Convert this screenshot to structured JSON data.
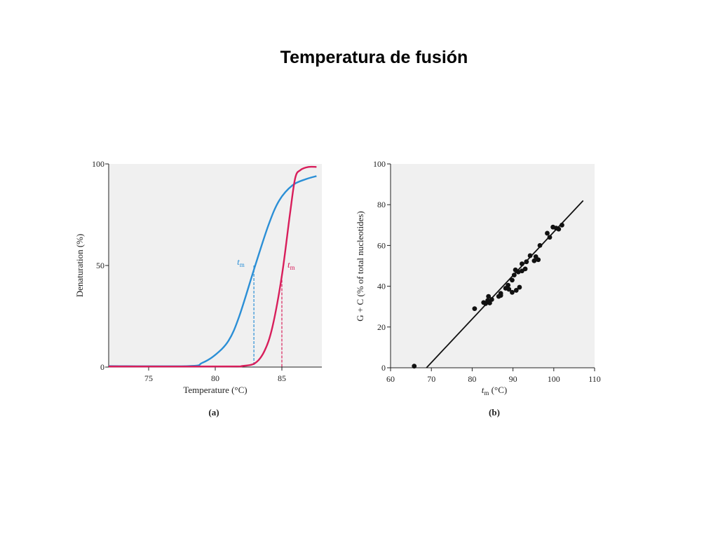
{
  "slide": {
    "title": "Temperatura de fusión"
  },
  "chart_data": [
    {
      "type": "line",
      "caption": "(a)",
      "xlabel": "Temperature (°C)",
      "ylabel": "Denaturation (%)",
      "xlim": [
        72,
        88
      ],
      "ylim": [
        0,
        100
      ],
      "xticks": [
        75,
        80,
        85
      ],
      "yticks": [
        0,
        50,
        100
      ],
      "grid": false,
      "series": [
        {
          "color": "#2b8fd6",
          "x": [
            72,
            78,
            79,
            80,
            81,
            81.8,
            83,
            84,
            84.8,
            85.8,
            86.8,
            87.6
          ],
          "y": [
            0.5,
            0.5,
            2,
            6,
            13,
            25,
            50,
            70,
            82,
            89.5,
            92.5,
            94
          ]
        },
        {
          "color": "#d81e5b",
          "x": [
            72,
            81,
            82,
            83,
            83.7,
            84.3,
            85,
            85.6,
            86,
            86.4,
            87,
            87.6
          ],
          "y": [
            0.3,
            0.3,
            0.5,
            2,
            8,
            20,
            45,
            75,
            93,
            97,
            98.5,
            98.5
          ]
        }
      ],
      "tm_markers": [
        {
          "label": "t",
          "sub": "m",
          "color": "#2b8fd6",
          "x": 82.9,
          "y": 50
        },
        {
          "label": "t",
          "sub": "m",
          "color": "#d81e5b",
          "x": 85.0,
          "y": 45
        }
      ]
    },
    {
      "type": "scatter",
      "caption": "(b)",
      "xlabel_t": "t",
      "xlabel_sub": "m",
      "xlabel_rest": " (°C)",
      "ylabel": "G + C (% of total nucleotides)",
      "xlim": [
        60,
        110
      ],
      "ylim": [
        0,
        100
      ],
      "xticks": [
        60,
        70,
        80,
        90,
        100,
        110
      ],
      "yticks": [
        0,
        20,
        40,
        60,
        80,
        100
      ],
      "grid": false,
      "points": [
        [
          65.8,
          0.8
        ],
        [
          80.6,
          29
        ],
        [
          82.8,
          32
        ],
        [
          83.3,
          31.5
        ],
        [
          83.8,
          33
        ],
        [
          84.0,
          35
        ],
        [
          84.3,
          31.8
        ],
        [
          84.8,
          33.5
        ],
        [
          86.5,
          35
        ],
        [
          87.0,
          36.5
        ],
        [
          87.0,
          35.5
        ],
        [
          88.2,
          39
        ],
        [
          88.8,
          40.5
        ],
        [
          89.0,
          38.5
        ],
        [
          89.8,
          37
        ],
        [
          89.8,
          43
        ],
        [
          90.3,
          45.5
        ],
        [
          90.6,
          48
        ],
        [
          90.8,
          38
        ],
        [
          91.3,
          47
        ],
        [
          91.6,
          39.5
        ],
        [
          92.2,
          47.5
        ],
        [
          92.2,
          51
        ],
        [
          93.0,
          48.5
        ],
        [
          93.3,
          52
        ],
        [
          94.2,
          55
        ],
        [
          95.2,
          52.5
        ],
        [
          95.6,
          54.5
        ],
        [
          96.2,
          53
        ],
        [
          96.6,
          60
        ],
        [
          98.4,
          66
        ],
        [
          99.0,
          64
        ],
        [
          99.8,
          69
        ],
        [
          100.6,
          68.5
        ],
        [
          101.2,
          68
        ],
        [
          102.0,
          70
        ]
      ],
      "fit_line": {
        "x1": 68.8,
        "y1": 0,
        "x2": 107.2,
        "y2": 82
      }
    }
  ]
}
